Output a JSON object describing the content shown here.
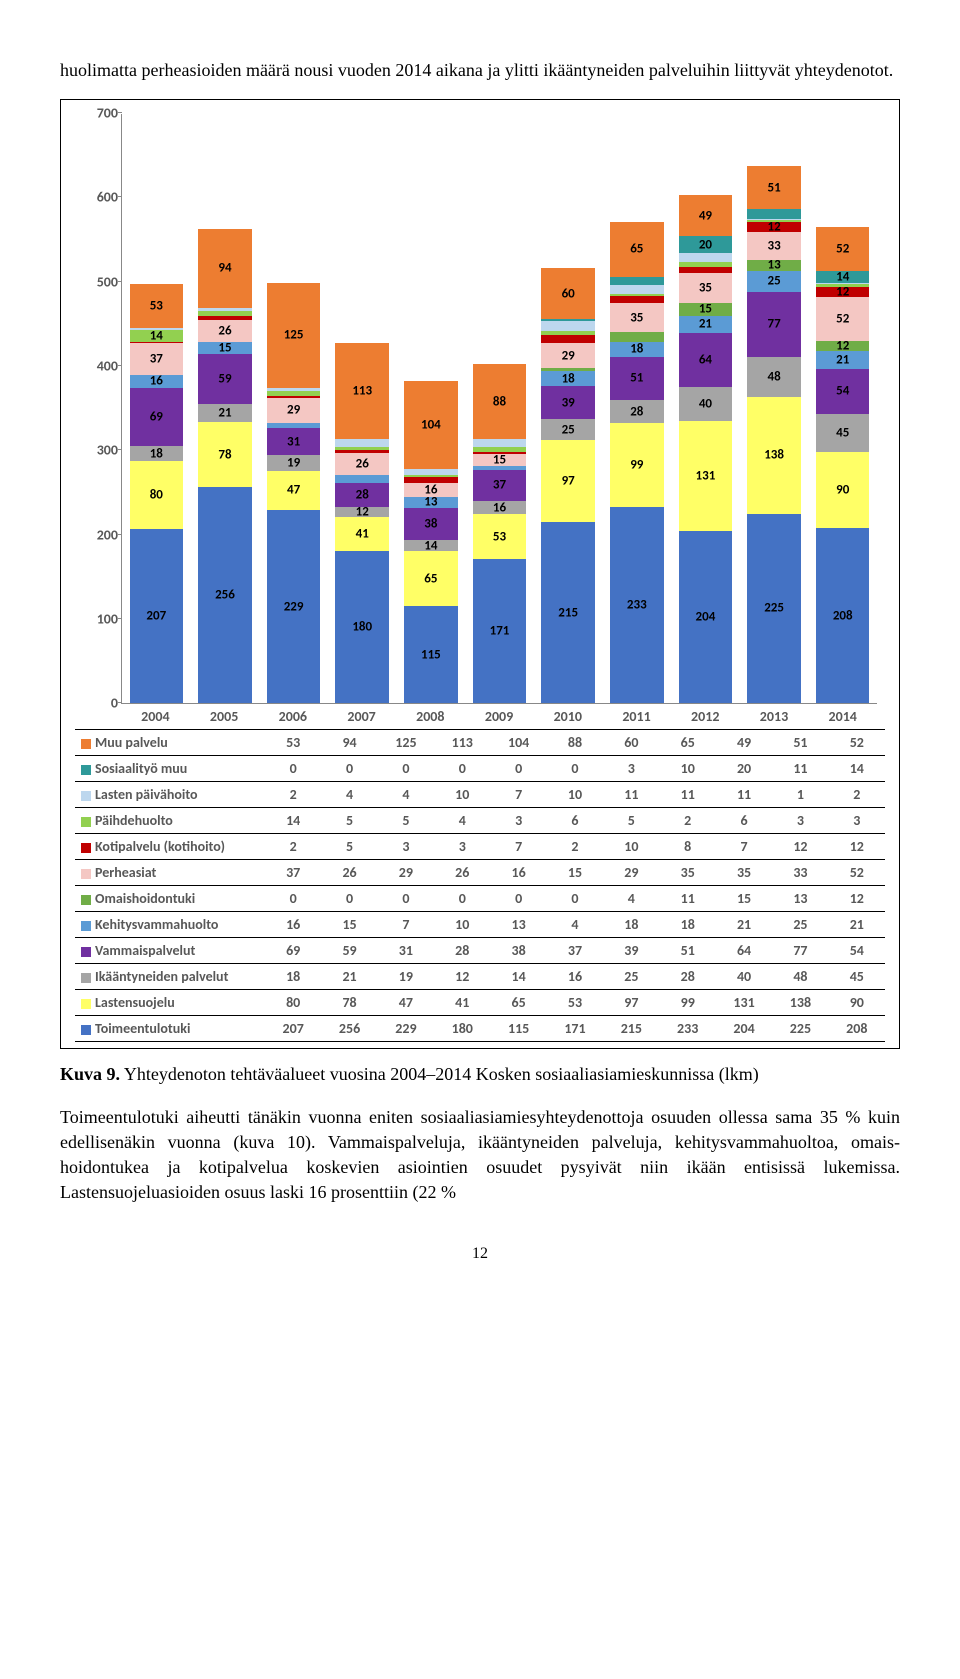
{
  "intro": "huolimatta perheasioiden määrä nousi vuoden 2014 aikana ja ylitti ikäänty­neiden palveluihin liittyvät yhteydenotot.",
  "caption_prefix": "Kuva 9.",
  "caption": " Yhteydenoton tehtäväalueet vuosina 2004–2014 Kosken sosi­aaliasiamieskunnissa (lkm)",
  "body": "Toimeentulotuki aiheutti tänäkin vuonna eniten sosiaaliasiamiesyhteydenot­toja osuuden ollessa sama 35 % kuin edellisenäkin vuonna (kuva 10). Vammaispalveluja, ikääntyneiden palveluja, kehitysvammahuoltoa, omais­hoidontukea ja kotipalvelua koskevien asiointien osuudet pysyivät niin ikään entisissä lukemissa. Lastensuojeluasioiden osuus laski 16 prosenttiin (22 %",
  "page_number": "12",
  "chart": {
    "type": "stacked-bar",
    "ymax": 700,
    "ytick_step": 100,
    "yticks": [
      0,
      100,
      200,
      300,
      400,
      500,
      600,
      700
    ],
    "background_color": "#ffffff",
    "axis_color": "#888888",
    "label_min_for_text": 12,
    "categories": [
      "2004",
      "2005",
      "2006",
      "2007",
      "2008",
      "2009",
      "2010",
      "2011",
      "2012",
      "2013",
      "2014"
    ],
    "series": [
      {
        "key": "toimeentulotuki",
        "name": "Toimeentulotuki",
        "color": "#4472c4",
        "values": [
          207,
          256,
          229,
          180,
          115,
          171,
          215,
          233,
          204,
          225,
          208
        ]
      },
      {
        "key": "lastensuojelu",
        "name": "Lastensuojelu",
        "color": "#ffff66",
        "values": [
          80,
          78,
          47,
          41,
          65,
          53,
          97,
          99,
          131,
          138,
          90
        ]
      },
      {
        "key": "ikaantyneiden",
        "name": "Ikääntyneiden palvelut",
        "color": "#a5a5a5",
        "values": [
          18,
          21,
          19,
          12,
          14,
          16,
          25,
          28,
          40,
          48,
          45
        ]
      },
      {
        "key": "vammaispalvelut",
        "name": "Vammaispalvelut",
        "color": "#7030a0",
        "values": [
          69,
          59,
          31,
          28,
          38,
          37,
          39,
          51,
          64,
          77,
          54
        ]
      },
      {
        "key": "kehitysvammahuolto",
        "name": "Kehitysvammahuolto",
        "color": "#5b9bd5",
        "values": [
          16,
          15,
          7,
          10,
          13,
          4,
          18,
          18,
          21,
          25,
          21
        ]
      },
      {
        "key": "omaishoidontuki",
        "name": "Omaishoidontuki",
        "color": "#70ad47",
        "values": [
          0,
          0,
          0,
          0,
          0,
          0,
          4,
          11,
          15,
          13,
          12
        ]
      },
      {
        "key": "perheasiat",
        "name": "Perheasiat",
        "color": "#f4c7c3",
        "values": [
          37,
          26,
          29,
          26,
          16,
          15,
          29,
          35,
          35,
          33,
          52
        ]
      },
      {
        "key": "kotipalvelu",
        "name": "Kotipalvelu (kotihoito)",
        "color": "#c00000",
        "values": [
          2,
          5,
          3,
          3,
          7,
          2,
          10,
          8,
          7,
          12,
          12
        ]
      },
      {
        "key": "paihdehuolto",
        "name": "Päihdehuolto",
        "color": "#92d050",
        "values": [
          14,
          5,
          5,
          4,
          3,
          6,
          5,
          2,
          6,
          3,
          3
        ]
      },
      {
        "key": "lasten_paivahoito",
        "name": "Lasten päivähoito",
        "color": "#bdd7ee",
        "values": [
          2,
          4,
          4,
          10,
          7,
          10,
          11,
          11,
          11,
          1,
          2
        ]
      },
      {
        "key": "sosiaalityo_muu",
        "name": "Sosiaalityö muu",
        "color": "#2e9999",
        "values": [
          0,
          0,
          0,
          0,
          0,
          0,
          3,
          10,
          20,
          11,
          14
        ]
      },
      {
        "key": "muupalvelu",
        "name": "Muu palvelu",
        "color": "#ed7d31",
        "values": [
          53,
          94,
          125,
          113,
          104,
          88,
          60,
          65,
          49,
          51,
          52
        ]
      }
    ]
  }
}
